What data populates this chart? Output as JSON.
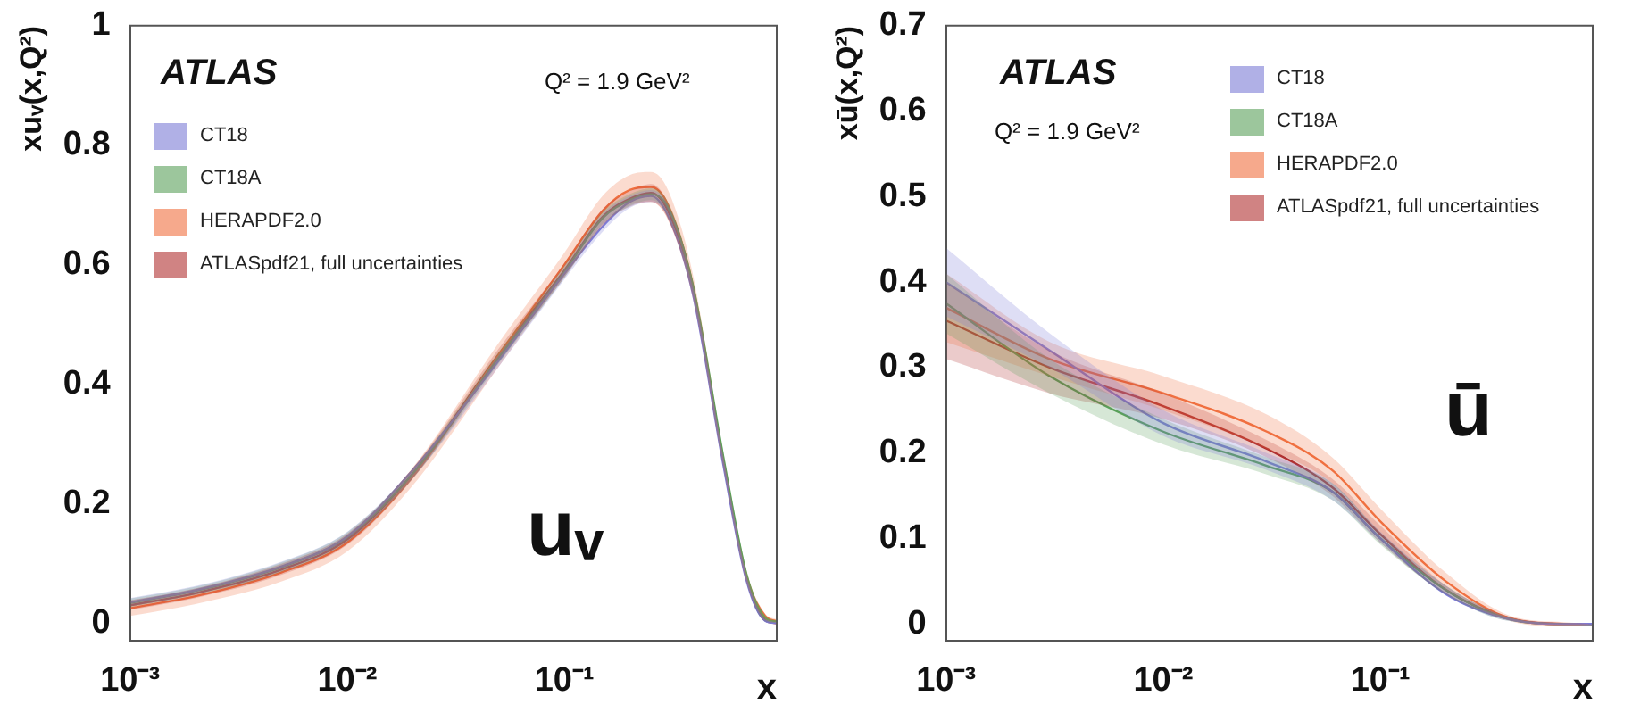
{
  "chart_data": [
    {
      "type": "line",
      "xlabel": "x",
      "ylabel": "xuᵥ(x,Q²)",
      "log": "x",
      "legend": "top left",
      "xlim": [
        0.001,
        0.95
      ],
      "ylim": [
        -0.03,
        1
      ],
      "xticks": [
        {
          "value": 0.001,
          "label": "10⁻³"
        },
        {
          "value": 0.01,
          "label": "10⁻²"
        },
        {
          "value": 0.1,
          "label": "10⁻¹"
        }
      ],
      "yticks": [
        0,
        0.2,
        0.4,
        0.6,
        0.8,
        1
      ],
      "annotations": [
        "ATLAS",
        "Q² = 1.9 GeV²",
        "uᵥ"
      ],
      "x": [
        0.001,
        0.002,
        0.005,
        0.01,
        0.02,
        0.05,
        0.1,
        0.15,
        0.2,
        0.25,
        0.3,
        0.39,
        0.54,
        0.69,
        0.84,
        0.95
      ],
      "series": [
        {
          "name": "CT18",
          "color": "#7b7bd6",
          "values": [
            0.035,
            0.055,
            0.095,
            0.145,
            0.256,
            0.44,
            0.585,
            0.664,
            0.705,
            0.715,
            0.682,
            0.552,
            0.264,
            0.071,
            0.004,
            0
          ],
          "lower": [
            0.028,
            0.048,
            0.087,
            0.137,
            0.242,
            0.43,
            0.575,
            0.655,
            0.695,
            0.705,
            0.68,
            0.55,
            0.262,
            0.07,
            0.003,
            0
          ],
          "upper": [
            0.042,
            0.062,
            0.103,
            0.153,
            0.258,
            0.45,
            0.595,
            0.685,
            0.715,
            0.725,
            0.7,
            0.57,
            0.278,
            0.08,
            0.007,
            0
          ]
        },
        {
          "name": "CT18A",
          "color": "#5aa05a",
          "values": [
            0.034,
            0.054,
            0.094,
            0.144,
            0.25,
            0.445,
            0.588,
            0.678,
            0.708,
            0.718,
            0.696,
            0.567,
            0.277,
            0.081,
            0.009,
            0.002
          ],
          "lower": [
            0.027,
            0.047,
            0.086,
            0.136,
            0.242,
            0.435,
            0.578,
            0.668,
            0.698,
            0.708,
            0.68,
            0.55,
            0.262,
            0.07,
            0.003,
            0
          ],
          "upper": [
            0.041,
            0.061,
            0.102,
            0.152,
            0.258,
            0.455,
            0.598,
            0.688,
            0.718,
            0.728,
            0.705,
            0.575,
            0.285,
            0.088,
            0.013,
            0.004
          ]
        },
        {
          "name": "HERAPDF2.0",
          "color": "#f07040",
          "values": [
            0.025,
            0.045,
            0.085,
            0.135,
            0.245,
            0.45,
            0.6,
            0.69,
            0.725,
            0.73,
            0.7,
            0.565,
            0.27,
            0.078,
            0.012,
            0.003
          ],
          "lower": [
            0.012,
            0.032,
            0.07,
            0.12,
            0.23,
            0.43,
            0.58,
            0.665,
            0.7,
            0.705,
            0.675,
            0.545,
            0.26,
            0.068,
            0.006,
            0
          ],
          "upper": [
            0.038,
            0.058,
            0.1,
            0.15,
            0.26,
            0.47,
            0.62,
            0.715,
            0.75,
            0.755,
            0.725,
            0.585,
            0.28,
            0.086,
            0.016,
            0.006
          ]
        },
        {
          "name": "ATLASpdf21, full uncertainties",
          "color": "#b03030",
          "values": [
            0.03,
            0.05,
            0.09,
            0.14,
            0.25,
            0.45,
            0.59,
            0.68,
            0.71,
            0.72,
            0.69,
            0.56,
            0.27,
            0.075,
            0.005,
            0
          ],
          "lower": [
            0.022,
            0.042,
            0.081,
            0.131,
            0.241,
            0.44,
            0.578,
            0.667,
            0.697,
            0.705,
            0.676,
            0.549,
            0.262,
            0.07,
            0.003,
            0
          ],
          "upper": [
            0.038,
            0.058,
            0.099,
            0.149,
            0.259,
            0.46,
            0.602,
            0.693,
            0.723,
            0.735,
            0.704,
            0.571,
            0.278,
            0.08,
            0.007,
            0
          ]
        }
      ]
    },
    {
      "type": "line",
      "xlabel": "x",
      "ylabel": "xū(x,Q²)",
      "log": "x",
      "legend": "top right",
      "xlim": [
        0.001,
        0.95
      ],
      "ylim": [
        -0.02,
        0.7
      ],
      "xticks": [
        {
          "value": 0.001,
          "label": "10⁻³"
        },
        {
          "value": 0.01,
          "label": "10⁻²"
        },
        {
          "value": 0.1,
          "label": "10⁻¹"
        }
      ],
      "yticks": [
        0,
        0.1,
        0.2,
        0.3,
        0.4,
        0.5,
        0.6,
        0.7
      ],
      "annotations": [
        "ATLAS",
        "Q² = 1.9 GeV²",
        "ū"
      ],
      "x": [
        0.001,
        0.003,
        0.01,
        0.03,
        0.06,
        0.1,
        0.2,
        0.4,
        0.7,
        0.95
      ],
      "series": [
        {
          "name": "CT18",
          "color": "#7b7bd6",
          "values": [
            0.4,
            0.32,
            0.235,
            0.19,
            0.155,
            0.1,
            0.035,
            0.005,
            0,
            0
          ],
          "lower": [
            0.36,
            0.3,
            0.22,
            0.18,
            0.145,
            0.095,
            0.035,
            0.003,
            0,
            0
          ],
          "upper": [
            0.44,
            0.34,
            0.25,
            0.2,
            0.165,
            0.108,
            0.045,
            0.007,
            0.001,
            0
          ]
        },
        {
          "name": "CT18A",
          "color": "#5aa05a",
          "values": [
            0.375,
            0.29,
            0.225,
            0.185,
            0.155,
            0.1,
            0.04,
            0.005,
            0,
            0
          ],
          "lower": [
            0.34,
            0.27,
            0.21,
            0.175,
            0.145,
            0.093,
            0.035,
            0.003,
            0,
            0
          ],
          "upper": [
            0.41,
            0.31,
            0.24,
            0.195,
            0.165,
            0.107,
            0.045,
            0.007,
            0.001,
            0
          ]
        },
        {
          "name": "HERAPDF2.0",
          "color": "#f07040",
          "values": [
            0.37,
            0.31,
            0.27,
            0.225,
            0.18,
            0.12,
            0.05,
            0.006,
            0,
            0
          ],
          "lower": [
            0.33,
            0.29,
            0.25,
            0.205,
            0.165,
            0.105,
            0.04,
            0.003,
            -0.003,
            0
          ],
          "upper": [
            0.41,
            0.33,
            0.29,
            0.245,
            0.195,
            0.135,
            0.06,
            0.009,
            0.002,
            0
          ]
        },
        {
          "name": "ATLASpdf21, full uncertainties",
          "color": "#b03030",
          "values": [
            0.355,
            0.3,
            0.255,
            0.205,
            0.16,
            0.105,
            0.04,
            0.006,
            0,
            0
          ],
          "lower": [
            0.31,
            0.27,
            0.24,
            0.195,
            0.15,
            0.095,
            0.035,
            0.004,
            0,
            0
          ],
          "upper": [
            0.4,
            0.32,
            0.27,
            0.215,
            0.17,
            0.115,
            0.045,
            0.008,
            0.001,
            0
          ]
        }
      ]
    }
  ]
}
